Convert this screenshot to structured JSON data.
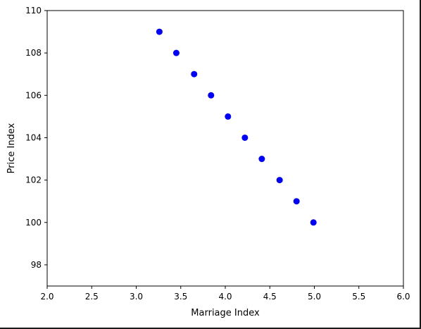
{
  "chart_data": {
    "type": "scatter",
    "title": "",
    "xlabel": "Marriage Index",
    "ylabel": "Price Index",
    "xlim": [
      2.0,
      6.0
    ],
    "ylim": [
      97,
      110
    ],
    "xticks": [
      "2.0",
      "2.5",
      "3.0",
      "3.5",
      "4.0",
      "4.5",
      "5.0",
      "5.5",
      "6.0"
    ],
    "yticks": [
      "98",
      "100",
      "102",
      "104",
      "106",
      "108",
      "110"
    ],
    "grid": false,
    "legend": "none",
    "marker_color": "#0000ff",
    "series": [
      {
        "x": [
          3.26,
          3.45,
          3.65,
          3.84,
          4.03,
          4.22,
          4.41,
          4.61,
          4.8,
          4.99
        ],
        "y": [
          109,
          108,
          107,
          106,
          105,
          104,
          103,
          102,
          101,
          100
        ]
      }
    ]
  }
}
